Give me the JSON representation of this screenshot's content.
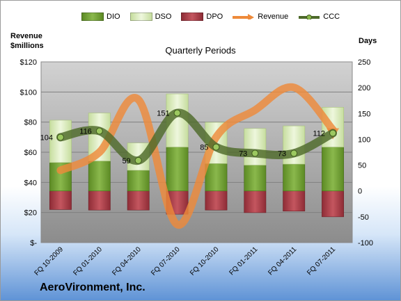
{
  "company": "AeroVironment, Inc.",
  "colors": {
    "dio": "#77a33a",
    "dso": "#d8ecb5",
    "dpo": "#b5434e",
    "revenue": "#ee8a3a",
    "ccc": "#4e6a2a"
  },
  "chart_data": {
    "type": "bar",
    "title": "Quarterly Periods",
    "left_axis_label": "Revenue\n$millions",
    "right_axis_label": "Days",
    "left_ticks": [
      "$120",
      "$100",
      "$80",
      "$60",
      "$40",
      "$20",
      "$-"
    ],
    "right_ticks": [
      "250",
      "200",
      "150",
      "100",
      "50",
      "0",
      "-50",
      "-100"
    ],
    "left_range": [
      0,
      120
    ],
    "right_range": [
      -100,
      250
    ],
    "categories": [
      "FQ 10-2009",
      "FQ 01-2010",
      "FQ 04-2010",
      "FQ 07-2010",
      "FQ 10-2010",
      "FQ 01-2011",
      "FQ 04-2011",
      "FQ 07-2011"
    ],
    "series": [
      {
        "name": "DIO",
        "axis": "right",
        "values": [
          55,
          58,
          40,
          85,
          53,
          50,
          52,
          85
        ]
      },
      {
        "name": "DSO",
        "axis": "right",
        "values": [
          82,
          93,
          53,
          103,
          80,
          71,
          74,
          77
        ]
      },
      {
        "name": "DPO",
        "axis": "right",
        "values": [
          -36,
          -37,
          -37,
          -45,
          -37,
          -42,
          -39,
          -50
        ]
      },
      {
        "name": "Revenue",
        "axis": "left",
        "values": [
          48,
          60,
          95,
          12,
          70,
          88,
          103,
          75
        ]
      },
      {
        "name": "CCC",
        "axis": "right",
        "values": [
          104,
          116,
          59,
          151,
          85,
          73,
          73,
          112
        ]
      }
    ],
    "data_labels": [
      "104",
      "116",
      "59",
      "151",
      "85",
      "73",
      "73",
      "112"
    ],
    "legend_position": "top",
    "grid": true
  }
}
